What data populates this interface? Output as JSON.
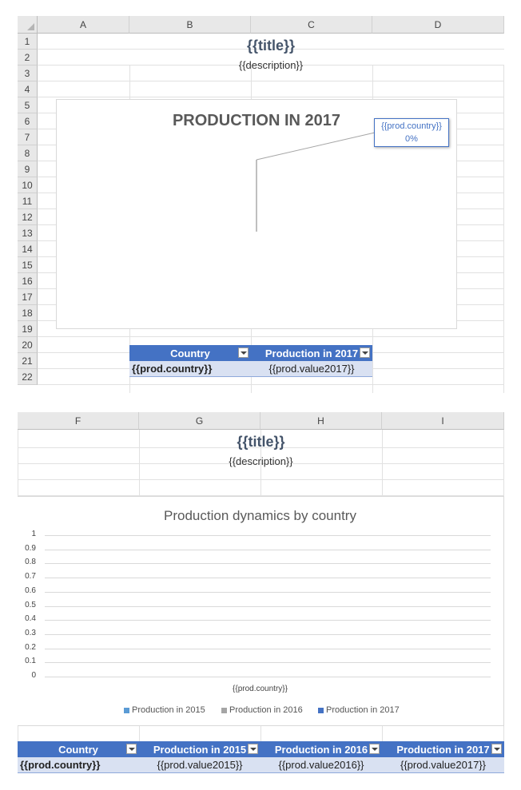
{
  "sheet1": {
    "columns": [
      "A",
      "B",
      "C",
      "D"
    ],
    "rows": [
      "1",
      "2",
      "3",
      "4",
      "5",
      "6",
      "7",
      "8",
      "9",
      "10",
      "11",
      "12",
      "13",
      "14",
      "15",
      "16",
      "17",
      "18",
      "19",
      "20",
      "21",
      "22"
    ],
    "title": "{{title}}",
    "description": "{{description}}",
    "chart": {
      "title": "PRODUCTION IN 2017",
      "data_label": {
        "name": "{{prod.country}}",
        "value": "0%"
      }
    },
    "table": {
      "headers": [
        "Country",
        "Production in 2017"
      ],
      "row": [
        "{{prod.country}}",
        "{{prod.value2017}}"
      ]
    }
  },
  "sheet2": {
    "columns": [
      "F",
      "G",
      "H",
      "I"
    ],
    "title": "{{title}}",
    "description": "{{description}}",
    "table": {
      "headers": [
        "Country",
        "Production in 2015",
        "Production in 2016",
        "Production in 2017"
      ],
      "row": [
        "{{prod.country}}",
        "{{prod.value2015}}",
        "{{prod.value2016}}",
        "{{prod.value2017}}"
      ]
    }
  },
  "chart_data": [
    {
      "type": "pie",
      "title": "PRODUCTION IN 2017",
      "categories": [
        "{{prod.country}}"
      ],
      "values": [
        0
      ],
      "data_labels": [
        "0%"
      ]
    },
    {
      "type": "bar",
      "title": "Production dynamics by country",
      "categories": [
        "{{prod.country}}"
      ],
      "series": [
        {
          "name": "Production in 2015",
          "values": [
            0
          ],
          "color": "#5b9bd5"
        },
        {
          "name": "Production in 2016",
          "values": [
            0
          ],
          "color": "#a5a5a5"
        },
        {
          "name": "Production in 2017",
          "values": [
            0
          ],
          "color": "#4472c4"
        }
      ],
      "yticks": [
        "0",
        "0.1",
        "0.2",
        "0.3",
        "0.4",
        "0.5",
        "0.6",
        "0.7",
        "0.8",
        "0.9",
        "1"
      ],
      "ylim": [
        0,
        1
      ],
      "grid": true,
      "legend": "bottom"
    }
  ]
}
